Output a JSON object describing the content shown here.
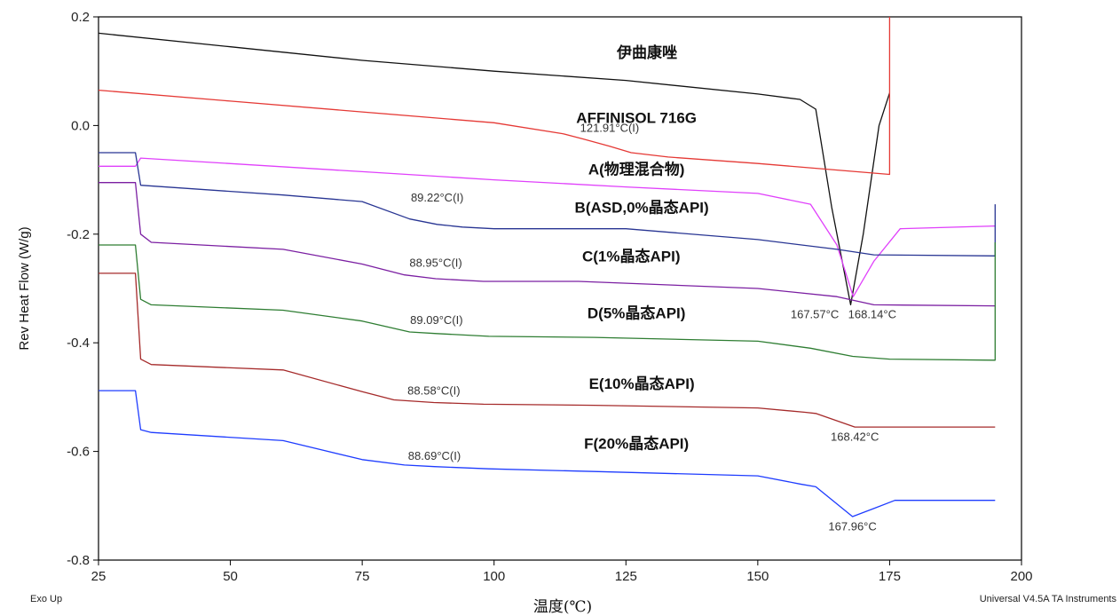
{
  "chart_data": {
    "type": "line",
    "xlabel": "温度(℃)",
    "ylabel": "Rev Heat Flow (W/g)",
    "xlim": [
      25,
      200
    ],
    "ylim": [
      -0.8,
      0.2
    ],
    "xticks": [
      "25",
      "50",
      "75",
      "100",
      "125",
      "150",
      "175",
      "200"
    ],
    "yticks": [
      "0.2",
      "0.0",
      "-0.2",
      "-0.4",
      "-0.6",
      "-0.8"
    ],
    "footer_left": "Exo Up",
    "footer_right": "Universal V4.5A TA Instruments",
    "series": [
      {
        "name": "伊曲康唑",
        "color": "#111111",
        "x": [
          25,
          50,
          75,
          100,
          125,
          150,
          158,
          161,
          164,
          167.6,
          170,
          173,
          175
        ],
        "y": [
          0.17,
          0.145,
          0.12,
          0.1,
          0.083,
          0.058,
          0.048,
          0.03,
          -0.15,
          -0.33,
          -0.2,
          0.0,
          0.06
        ]
      },
      {
        "name": "AFFINISOL 716G",
        "color": "#e53935",
        "x": [
          25,
          50,
          75,
          100,
          113,
          117,
          121.9,
          126,
          133,
          150,
          175,
          175
        ],
        "y": [
          0.065,
          0.045,
          0.025,
          0.005,
          -0.015,
          -0.025,
          -0.038,
          -0.05,
          -0.058,
          -0.07,
          -0.09,
          0.2
        ]
      },
      {
        "name": "A(物理混合物)",
        "color": "#e040fb",
        "x": [
          25,
          32,
          33,
          75,
          100,
          125,
          150,
          160,
          165,
          168.1,
          172,
          177,
          195
        ],
        "y": [
          -0.075,
          -0.075,
          -0.06,
          -0.085,
          -0.1,
          -0.113,
          -0.125,
          -0.145,
          -0.22,
          -0.315,
          -0.25,
          -0.19,
          -0.185
        ]
      },
      {
        "name": "B(ASD,0%晶态API)",
        "color": "#283593",
        "x": [
          25,
          32,
          33,
          60,
          75,
          84,
          89.2,
          94,
          100,
          125,
          150,
          165,
          172,
          195,
          195
        ],
        "y": [
          -0.05,
          -0.05,
          -0.11,
          -0.128,
          -0.14,
          -0.172,
          -0.182,
          -0.187,
          -0.19,
          -0.19,
          -0.21,
          -0.228,
          -0.238,
          -0.24,
          -0.145
        ]
      },
      {
        "name": "C(1%晶态API)",
        "color": "#7b1fa2",
        "x": [
          25,
          32,
          33,
          35,
          60,
          75,
          83,
          88.95,
          98,
          116,
          150,
          165,
          172,
          195
        ],
        "y": [
          -0.105,
          -0.105,
          -0.2,
          -0.215,
          -0.228,
          -0.255,
          -0.275,
          -0.282,
          -0.287,
          -0.287,
          -0.3,
          -0.315,
          -0.33,
          -0.332
        ]
      },
      {
        "name": "D(5%晶态API)",
        "color": "#2e7d32",
        "x": [
          25,
          32,
          33,
          35,
          60,
          75,
          84,
          89.09,
          99,
          119,
          150,
          160,
          168,
          175,
          195,
          195
        ],
        "y": [
          -0.22,
          -0.22,
          -0.32,
          -0.33,
          -0.34,
          -0.36,
          -0.38,
          -0.383,
          -0.388,
          -0.39,
          -0.397,
          -0.41,
          -0.425,
          -0.43,
          -0.432,
          -0.215
        ]
      },
      {
        "name": "E(10%晶态API)",
        "color": "#a52a2a",
        "x": [
          25,
          32,
          33,
          35,
          60,
          75,
          81,
          88.58,
          98,
          119,
          150,
          159,
          161,
          168.4,
          175,
          195
        ],
        "y": [
          -0.272,
          -0.272,
          -0.43,
          -0.44,
          -0.45,
          -0.49,
          -0.505,
          -0.51,
          -0.513,
          -0.515,
          -0.52,
          -0.528,
          -0.53,
          -0.555,
          -0.555,
          -0.555
        ]
      },
      {
        "name": "F(20%晶态API)",
        "color": "#1e3cff",
        "x": [
          25,
          32,
          33,
          35,
          60,
          75,
          83,
          88.69,
          99,
          119,
          150,
          158,
          161,
          167.96,
          172,
          176,
          195
        ],
        "y": [
          -0.488,
          -0.488,
          -0.56,
          -0.565,
          -0.58,
          -0.615,
          -0.625,
          -0.628,
          -0.632,
          -0.637,
          -0.645,
          -0.66,
          -0.665,
          -0.72,
          -0.705,
          -0.69,
          -0.69
        ]
      }
    ],
    "annotations": [
      {
        "x": 121.91,
        "y": -0.012,
        "text": "121.91°C(I)"
      },
      {
        "x": 89.22,
        "y": -0.14,
        "text": "89.22°C(I)"
      },
      {
        "x": 88.95,
        "y": -0.26,
        "text": "88.95°C(I)"
      },
      {
        "x": 89.09,
        "y": -0.365,
        "text": "89.09°C(I)"
      },
      {
        "x": 88.58,
        "y": -0.495,
        "text": "88.58°C(I)"
      },
      {
        "x": 88.69,
        "y": -0.615,
        "text": "88.69°C(I)"
      },
      {
        "x": 160.8,
        "y": -0.355,
        "text": "167.57°C"
      },
      {
        "x": 171.7,
        "y": -0.355,
        "text": "168.14°C"
      },
      {
        "x": 168.4,
        "y": -0.58,
        "text": "168.42°C"
      },
      {
        "x": 167.96,
        "y": -0.745,
        "text": "167.96°C"
      }
    ],
    "series_labels": [
      {
        "x": 129,
        "y": 0.125,
        "text": "伊曲康唑"
      },
      {
        "x": 127,
        "y": 0.005,
        "text": "AFFINISOL 716G"
      },
      {
        "x": 127,
        "y": -0.09,
        "text": "A(物理混合物)"
      },
      {
        "x": 128,
        "y": -0.16,
        "text": "B(ASD,0%晶态API)"
      },
      {
        "x": 126,
        "y": -0.25,
        "text": "C(1%晶态API)"
      },
      {
        "x": 127,
        "y": -0.355,
        "text": "D(5%晶态API)"
      },
      {
        "x": 128,
        "y": -0.485,
        "text": "E(10%晶态API)"
      },
      {
        "x": 127,
        "y": -0.595,
        "text": "F(20%晶态API)"
      }
    ]
  }
}
